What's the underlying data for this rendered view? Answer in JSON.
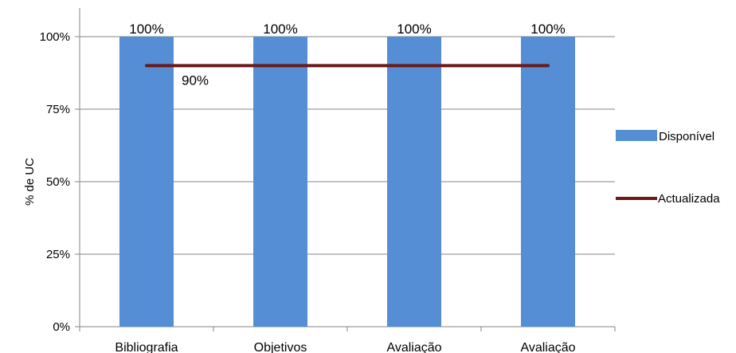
{
  "chart_data": {
    "type": "bar",
    "categories": [
      "Bibliografia",
      "Objetivos",
      "Avaliação",
      "Avaliação"
    ],
    "series": [
      {
        "name": "Disponível",
        "type": "bar",
        "values": [
          100,
          100,
          100,
          100
        ],
        "color": "#558ED5",
        "data_labels": [
          "100%",
          "100%",
          "100%",
          "100%"
        ]
      },
      {
        "name": "Actualizada",
        "type": "line",
        "values": [
          90,
          90,
          90,
          90
        ],
        "color": "#6B1A1A",
        "data_labels": [
          "90%"
        ]
      }
    ],
    "ylabel": "% de UC",
    "xlabel": "",
    "ylim": [
      0,
      100
    ],
    "yticks": [
      "0%",
      "25%",
      "50%",
      "75%",
      "100%"
    ],
    "grid": true,
    "legend": "right"
  }
}
